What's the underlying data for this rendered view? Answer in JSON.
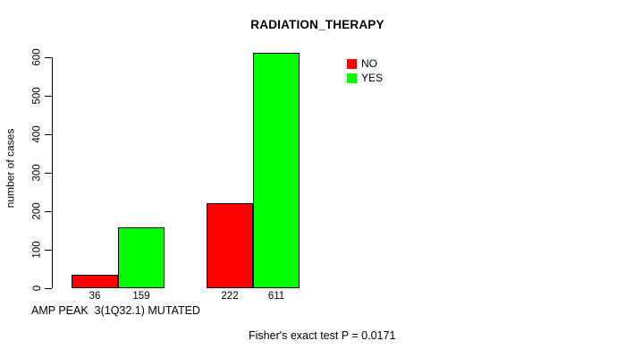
{
  "chart_data": {
    "type": "bar",
    "title": "RADIATION_THERAPY",
    "ylabel": "number of cases",
    "xlabel": "AMP PEAK  3(1Q32.1) MUTATED",
    "footnote": "Fisher's exact test P = 0.0171",
    "grouped": true,
    "n_groups": 2,
    "series": [
      {
        "name": "NO",
        "color": "#FF0000",
        "values": [
          36,
          222
        ]
      },
      {
        "name": "YES",
        "color": "#00FF00",
        "values": [
          159,
          611
        ]
      }
    ],
    "bar_value_labels": [
      [
        "36",
        "222"
      ],
      [
        "159",
        "611"
      ]
    ],
    "ylim": [
      0,
      600
    ],
    "yticks": [
      0,
      100,
      200,
      300,
      400,
      500,
      600
    ],
    "grid": false,
    "legend_position": "top-right",
    "bar_border_color": "#000000",
    "text_color": "#000000"
  }
}
